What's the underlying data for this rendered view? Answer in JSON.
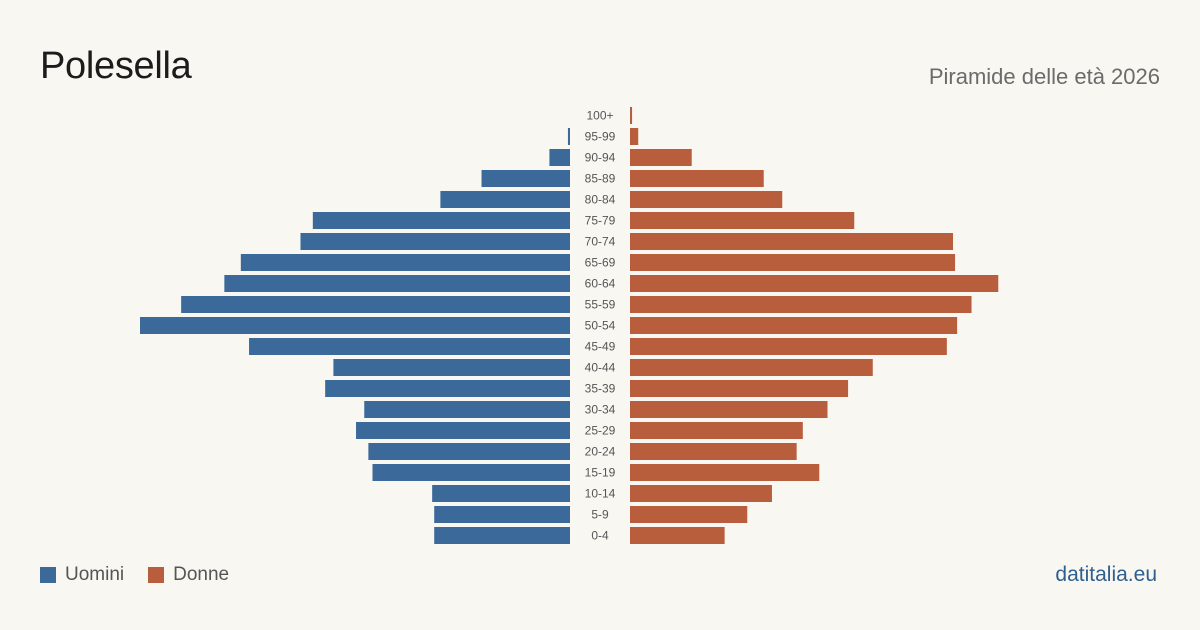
{
  "header": {
    "title": "Polesella",
    "subtitle": "Piramide delle età 2026"
  },
  "legend": {
    "men_label": "Uomini",
    "women_label": "Donne"
  },
  "footer": {
    "brand": "datitalia.eu"
  },
  "colors": {
    "men": "#3b6a9a",
    "women": "#b85e3d",
    "background": "#f9f7f2",
    "age_label": "#555555",
    "brand": "#2f5f8f"
  },
  "chart_data": {
    "type": "bar",
    "orientation": "horizontal",
    "title": "Piramide delle età 2026",
    "categories": [
      "100+",
      "95-99",
      "90-94",
      "85-89",
      "80-84",
      "75-79",
      "70-74",
      "65-69",
      "60-64",
      "55-59",
      "50-54",
      "45-49",
      "40-44",
      "35-39",
      "30-34",
      "25-29",
      "20-24",
      "15-19",
      "10-14",
      "5-9",
      "0-4"
    ],
    "series": [
      {
        "name": "Uomini",
        "values": [
          0,
          1,
          10,
          43,
          63,
          125,
          131,
          160,
          168,
          189,
          209,
          156,
          115,
          119,
          100,
          104,
          98,
          96,
          67,
          66,
          66
        ]
      },
      {
        "name": "Donne",
        "values": [
          1,
          4,
          30,
          65,
          74,
          109,
          157,
          158,
          179,
          166,
          159,
          154,
          118,
          106,
          96,
          84,
          81,
          92,
          69,
          57,
          46
        ]
      }
    ],
    "xlim": [
      0,
      209
    ],
    "grid": false,
    "legend_position": "bottom-left"
  }
}
